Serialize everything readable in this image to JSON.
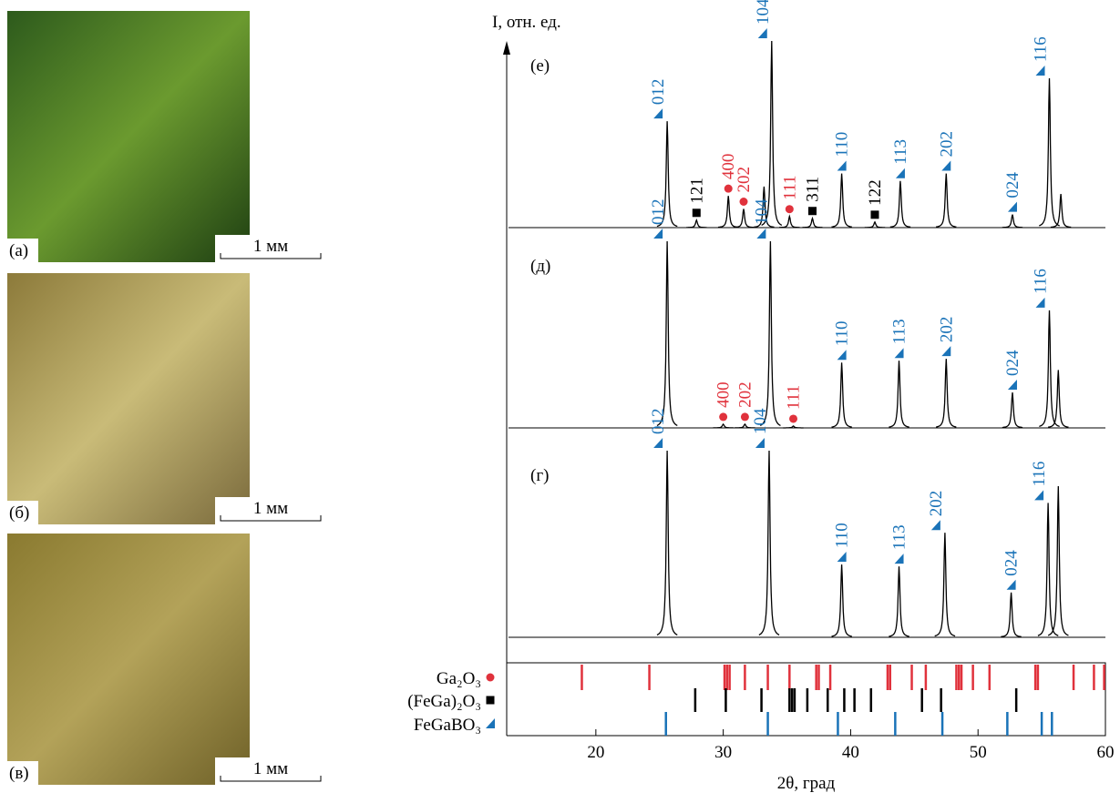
{
  "photos": [
    {
      "label": "(а)",
      "scale": "1 мм"
    },
    {
      "label": "(б)",
      "scale": "1 мм"
    },
    {
      "label": "(в)",
      "scale": "1 мм"
    }
  ],
  "chart_data": {
    "type": "line",
    "ylabel": "I, отн. ед.",
    "xlabel": "2θ, град",
    "xlim": [
      13,
      60
    ],
    "xticks": [
      20,
      30,
      40,
      50,
      60
    ],
    "phases": [
      {
        "name": "Ga₂O₃",
        "color": "#e0323c",
        "marker": "circle",
        "sticks": [
          18.9,
          24.2,
          30.1,
          30.3,
          30.5,
          31.7,
          33.5,
          35.2,
          37.3,
          37.5,
          38.4,
          42.9,
          43.1,
          44.8,
          45.9,
          48.3,
          48.5,
          48.7,
          49.6,
          50.9,
          54.5,
          54.7,
          57.5,
          59.1,
          59.9
        ]
      },
      {
        "name": "(FeGa)₂O₃",
        "color": "#000000",
        "marker": "square",
        "sticks": [
          27.8,
          30.2,
          33.0,
          35.2,
          35.4,
          35.6,
          36.6,
          38.2,
          39.5,
          40.3,
          41.6,
          45.6,
          47.1,
          53.0
        ]
      },
      {
        "name": "FeGaBO₃",
        "color": "#1a73b8",
        "marker": "triangle",
        "sticks": [
          25.5,
          33.5,
          39.0,
          43.5,
          47.2,
          52.3,
          55.0,
          55.8
        ]
      }
    ],
    "panels": [
      {
        "label": "(е)",
        "ylim": [
          0,
          100
        ],
        "peaks": [
          {
            "x": 25.6,
            "y": 57,
            "label": "012",
            "phase": 2
          },
          {
            "x": 27.9,
            "y": 4,
            "label": "121",
            "phase": 1
          },
          {
            "x": 30.4,
            "y": 17,
            "label": "400",
            "phase": 0
          },
          {
            "x": 31.6,
            "y": 10,
            "label": "202",
            "phase": 0
          },
          {
            "x": 33.2,
            "y": 22
          },
          {
            "x": 33.8,
            "y": 100,
            "label": "104",
            "phase": 2
          },
          {
            "x": 35.2,
            "y": 6,
            "label": "111",
            "phase": 0
          },
          {
            "x": 37.0,
            "y": 5,
            "label": "311",
            "phase": 1
          },
          {
            "x": 39.3,
            "y": 29,
            "label": "110",
            "phase": 2
          },
          {
            "x": 41.9,
            "y": 3,
            "label": "122",
            "phase": 1
          },
          {
            "x": 43.9,
            "y": 25,
            "label": "113",
            "phase": 2
          },
          {
            "x": 47.5,
            "y": 29,
            "label": "202",
            "phase": 2
          },
          {
            "x": 52.7,
            "y": 7,
            "label": "024",
            "phase": 2
          },
          {
            "x": 55.6,
            "y": 80,
            "label": "116",
            "phase": 2
          },
          {
            "x": 56.5,
            "y": 18
          }
        ]
      },
      {
        "label": "(д)",
        "ylim": [
          0,
          100
        ],
        "peaks": [
          {
            "x": 25.6,
            "y": 100,
            "label": "012",
            "phase": 2
          },
          {
            "x": 30.0,
            "y": 2,
            "label": "400",
            "phase": 0
          },
          {
            "x": 31.7,
            "y": 2,
            "label": "202",
            "phase": 0
          },
          {
            "x": 33.7,
            "y": 100,
            "label": "104",
            "phase": 2
          },
          {
            "x": 35.5,
            "y": 1,
            "label": "111",
            "phase": 0
          },
          {
            "x": 39.3,
            "y": 35,
            "label": "110",
            "phase": 2
          },
          {
            "x": 43.8,
            "y": 36,
            "label": "113",
            "phase": 2
          },
          {
            "x": 47.5,
            "y": 37,
            "label": "202",
            "phase": 2
          },
          {
            "x": 52.7,
            "y": 19,
            "label": "024",
            "phase": 2
          },
          {
            "x": 55.6,
            "y": 63,
            "label": "116",
            "phase": 2
          },
          {
            "x": 56.3,
            "y": 31
          }
        ]
      },
      {
        "label": "(г)",
        "ylim": [
          0,
          100
        ],
        "peaks": [
          {
            "x": 25.6,
            "y": 100,
            "label": "012",
            "phase": 2
          },
          {
            "x": 33.6,
            "y": 100,
            "label": "104",
            "phase": 2
          },
          {
            "x": 39.3,
            "y": 39,
            "label": "110",
            "phase": 2
          },
          {
            "x": 43.8,
            "y": 38,
            "label": "113",
            "phase": 2
          },
          {
            "x": 47.4,
            "y": 56,
            "label": "202",
            "phase": 2
          },
          {
            "x": 52.6,
            "y": 24,
            "label": "024",
            "phase": 2
          },
          {
            "x": 55.5,
            "y": 72,
            "label": "116",
            "phase": 2
          },
          {
            "x": 56.3,
            "y": 81
          }
        ]
      }
    ]
  }
}
